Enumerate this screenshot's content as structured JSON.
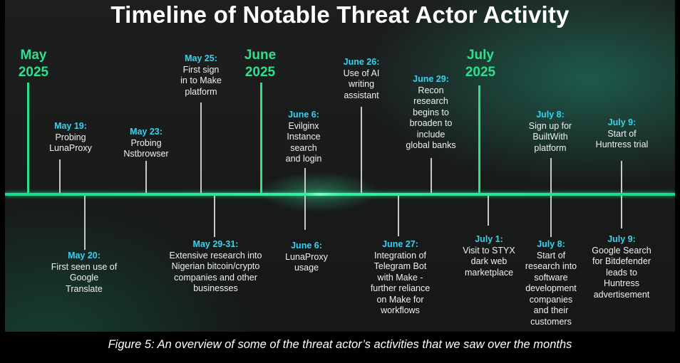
{
  "title": "Timeline of Notable Threat Actor Activity",
  "months": [
    {
      "line1": "May",
      "line2": "2025"
    },
    {
      "line1": "June",
      "line2": "2025"
    },
    {
      "line1": "July",
      "line2": "2025"
    }
  ],
  "events_above": [
    {
      "date": "May 19:",
      "text": "Probing\nLunaProxy"
    },
    {
      "date": "May 23:",
      "text": "Probing\nNstbrowser"
    },
    {
      "date": "May 25:",
      "text": "First sign\nin to Make\nplatform"
    },
    {
      "date": "June 6:",
      "text": "Evilginx\nInstance\nsearch\nand login"
    },
    {
      "date": "June 26:",
      "text": "Use of AI\nwriting\nassistant"
    },
    {
      "date": "June 29:",
      "text": "Recon\nresearch\nbegins to\nbroaden to\ninclude\nglobal banks"
    },
    {
      "date": "July 8:",
      "text": "Sign up for\nBuiltWith\nplatform"
    },
    {
      "date": "July 9:",
      "text": "Start of\nHuntress trial"
    }
  ],
  "events_below": [
    {
      "date": "May 20:",
      "text": "First seen use of\nGoogle\nTranslate"
    },
    {
      "date": "May 29-31:",
      "text": "Extensive research into\nNigerian  bitcoin/crypto\ncompanies and other\nbusinesses"
    },
    {
      "date": "June 6:",
      "text": "LunaProxy\nusage"
    },
    {
      "date": "June 27:",
      "text": "Integration of\nTelegram Bot\nwith Make -\nfurther reliance\non Make for\nworkflows"
    },
    {
      "date": "July 1:",
      "text": "Visit to STYX\ndark web\nmarketplace"
    },
    {
      "date": "July 8:",
      "text": "Start of\nresearch into\nsoftware\ndevelopment\ncompanies\nand their\ncustomers"
    },
    {
      "date": "July 9:",
      "text": "Google Search\nfor Bitdefender\nleads to\nHuntress\nadvertisement"
    }
  ],
  "caption": "Figure 5: An overview of some of the threat actor’s activities that we saw over the months",
  "colors": {
    "accent_green": "#2ee08e",
    "date_cyan": "#3ad1ec",
    "background": "#1b1d1d"
  }
}
